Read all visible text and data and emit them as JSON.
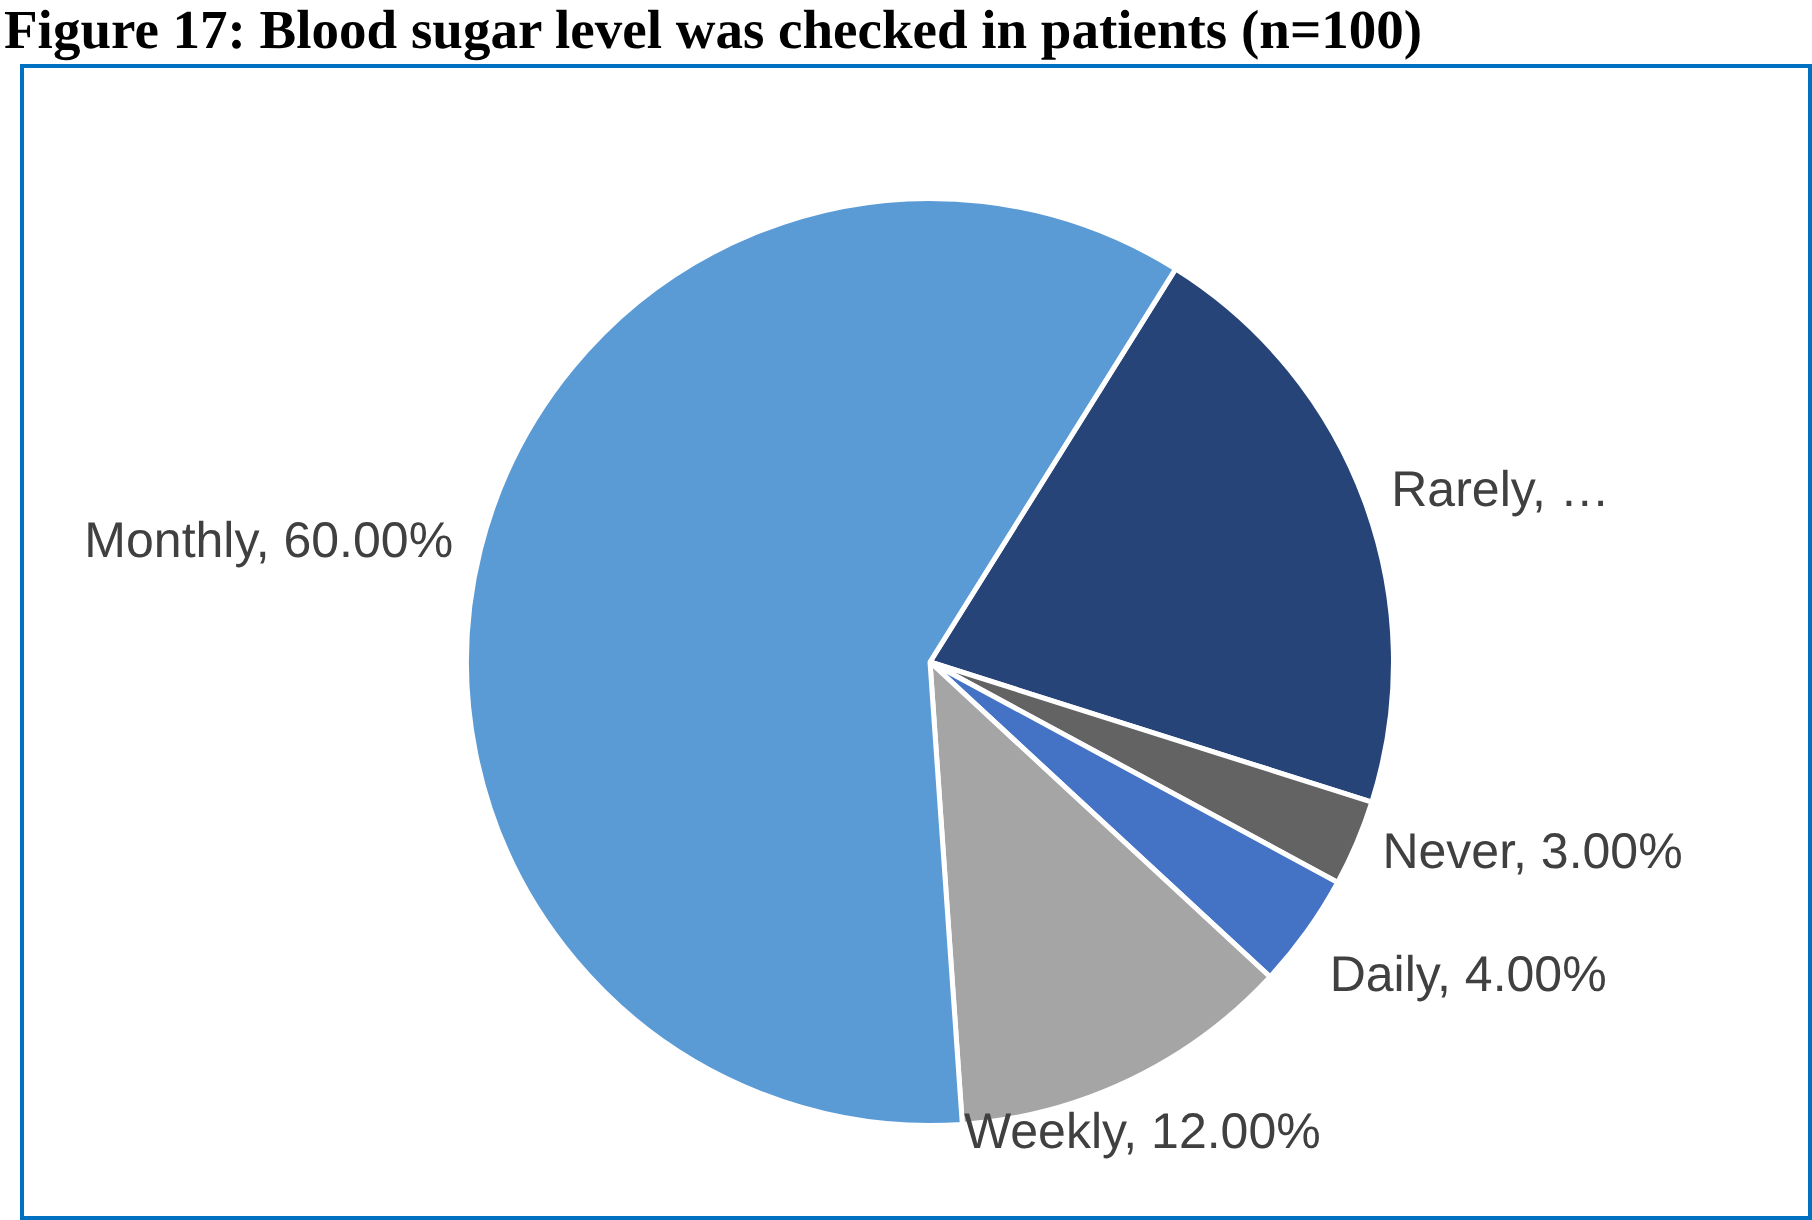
{
  "chart_data": {
    "type": "pie",
    "title": "Figure 17: Blood sugar level was checked in patients (n=100)",
    "categories": [
      "Rarely",
      "Never",
      "Daily",
      "Weekly",
      "Monthly"
    ],
    "values": [
      21,
      3,
      4,
      12,
      60
    ],
    "colors": [
      "#264478",
      "#636363",
      "#4472c4",
      "#a5a5a5",
      "#5b9bd5"
    ],
    "value_labels": [
      "…",
      "3.00%",
      "4.00%",
      "12.00%",
      "60.00%"
    ],
    "legend": false
  }
}
